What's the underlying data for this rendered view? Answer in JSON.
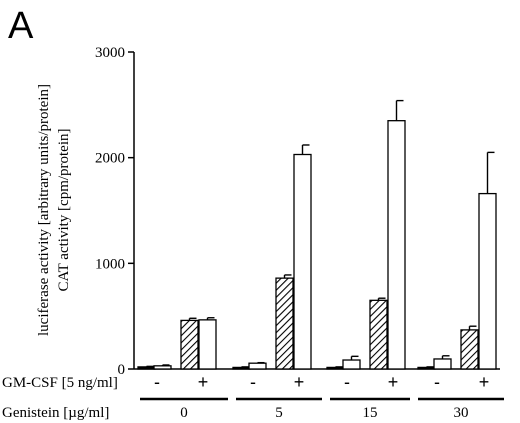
{
  "panel_label": "A",
  "chart_data": {
    "type": "bar",
    "ylim": [
      0,
      3000
    ],
    "yticks": [
      0,
      1000,
      2000,
      3000
    ],
    "ylabel_lines": [
      "luciferase activity [arbitrary units/protein]",
      "CAT activity [cpm/protein]"
    ],
    "row_labels": {
      "gmcsf": "GM-CSF [5 ng/ml]",
      "genistein": "Genistein [µg/ml]"
    },
    "groups": [
      "0",
      "5",
      "15",
      "30"
    ],
    "gmcsf_signs": [
      "-",
      "+"
    ],
    "series": [
      {
        "key": "gmcsf-minus-a",
        "fill": "black",
        "values": [
          20,
          15,
          15,
          15
        ],
        "errors": [
          5,
          5,
          5,
          5
        ]
      },
      {
        "key": "gmcsf-minus-b",
        "fill": "white",
        "values": [
          30,
          55,
          85,
          95
        ],
        "errors": [
          8,
          5,
          35,
          30
        ]
      },
      {
        "key": "gmcsf-plus-a",
        "fill": "hatched",
        "values": [
          460,
          860,
          650,
          370
        ],
        "errors": [
          20,
          30,
          20,
          35
        ]
      },
      {
        "key": "gmcsf-plus-b",
        "fill": "white",
        "values": [
          465,
          2030,
          2350,
          1660
        ],
        "errors": [
          20,
          90,
          190,
          390
        ]
      }
    ],
    "grid": false
  }
}
